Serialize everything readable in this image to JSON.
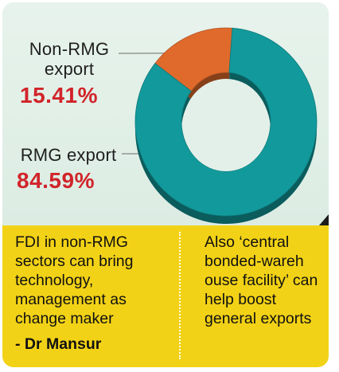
{
  "chart_data": {
    "type": "pie",
    "categories": [
      "Non-RMG export",
      "RMG export"
    ],
    "values": [
      15.41,
      84.59
    ],
    "unit": "%",
    "colors": [
      "#e06a2c",
      "#12999b"
    ]
  },
  "labels": {
    "nonrmg_name": "Non-RMG export",
    "nonrmg_value": "15.41%",
    "rmg_name": "RMG export",
    "rmg_value": "84.59%"
  },
  "notes": {
    "left": "FDI in non-RMG sectors can bring technology, management as change maker",
    "author": "- Dr Mansur",
    "right": "Also ‘central bonded-wareh ouse facility’ can help boost general exports"
  }
}
